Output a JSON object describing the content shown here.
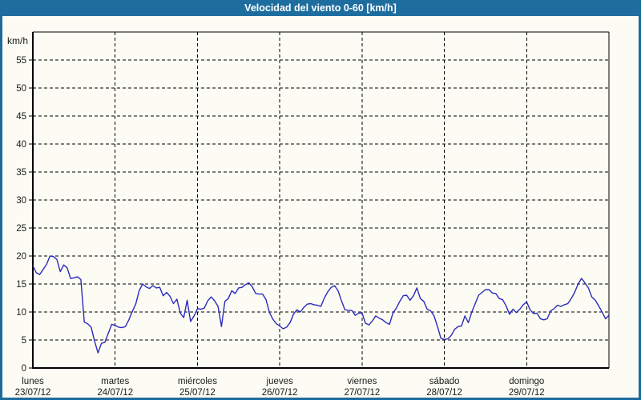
{
  "window": {
    "title": "Velocidad del viento 0-60 [km/h]"
  },
  "colors": {
    "titlebar_bg": "#1e6d9f",
    "frame_border": "#1d6b9e",
    "background": "#fcfcf4",
    "line": "#2b2bbe",
    "grid": "#000000",
    "axis": "#000000",
    "tick_text": "#1a1a1a",
    "title_text": "#ffffff"
  },
  "chart_data": {
    "type": "line",
    "title": "Velocidad del viento 0-60 [km/h]",
    "ylabel": "km/h",
    "ylim": [
      0,
      60
    ],
    "ytick_step": 5,
    "grid": true,
    "legend": false,
    "x_axis": {
      "hours_total": 168,
      "days": [
        {
          "name": "lunes",
          "date": "23/07/12"
        },
        {
          "name": "martes",
          "date": "24/07/12"
        },
        {
          "name": "miércoles",
          "date": "25/07/12"
        },
        {
          "name": "jueves",
          "date": "26/07/12"
        },
        {
          "name": "viernes",
          "date": "27/07/12"
        },
        {
          "name": "sábado",
          "date": "28/07/12"
        },
        {
          "name": "domingo",
          "date": "29/07/12"
        }
      ]
    },
    "series": [
      {
        "name": "Velocidad del viento",
        "unit": "km/h",
        "sample_interval_hours": 1,
        "values": [
          18.3,
          17.0,
          16.7,
          17.6,
          18.5,
          20.0,
          19.9,
          19.4,
          17.2,
          18.4,
          17.9,
          16.0,
          16.1,
          16.3,
          15.8,
          8.2,
          7.9,
          7.3,
          4.8,
          2.7,
          4.4,
          4.6,
          6.2,
          7.8,
          7.6,
          7.3,
          7.2,
          7.4,
          8.6,
          10.1,
          11.4,
          13.8,
          15.0,
          14.5,
          14.2,
          14.7,
          14.3,
          14.4,
          12.9,
          13.5,
          12.8,
          11.5,
          12.3,
          9.8,
          9.0,
          12.1,
          8.3,
          9.3,
          10.6,
          10.5,
          10.7,
          12.0,
          12.7,
          12.0,
          11.0,
          7.4,
          11.9,
          12.4,
          13.8,
          13.3,
          14.3,
          14.4,
          14.9,
          15.2,
          14.5,
          13.3,
          13.2,
          13.2,
          12.2,
          9.9,
          8.7,
          7.9,
          7.5,
          7.0,
          7.3,
          8.1,
          9.6,
          10.4,
          10.0,
          10.8,
          11.4,
          11.5,
          11.3,
          11.2,
          11.0,
          12.5,
          13.6,
          14.4,
          14.7,
          13.8,
          12.0,
          10.4,
          10.3,
          10.3,
          9.4,
          9.8,
          9.8,
          8.0,
          7.7,
          8.4,
          9.3,
          8.9,
          8.6,
          8.1,
          7.8,
          9.8,
          10.7,
          11.9,
          12.9,
          13.0,
          12.1,
          12.9,
          14.3,
          12.4,
          11.9,
          10.5,
          10.2,
          9.3,
          7.4,
          5.3,
          5.1,
          5.2,
          5.8,
          6.9,
          7.4,
          7.5,
          9.3,
          8.1,
          10.0,
          11.5,
          13.0,
          13.5,
          14.0,
          14.0,
          13.4,
          13.3,
          12.4,
          12.2,
          11.1,
          9.6,
          10.5,
          9.9,
          10.5,
          11.3,
          11.8,
          10.4,
          9.7,
          9.8,
          8.8,
          8.6,
          8.8,
          10.2,
          10.6,
          11.2,
          11.0,
          11.3,
          11.5,
          12.4,
          13.5,
          15.0,
          16.0,
          15.2,
          14.3,
          12.7,
          12.1,
          11.1,
          10.0,
          8.8,
          9.4
        ]
      }
    ]
  }
}
